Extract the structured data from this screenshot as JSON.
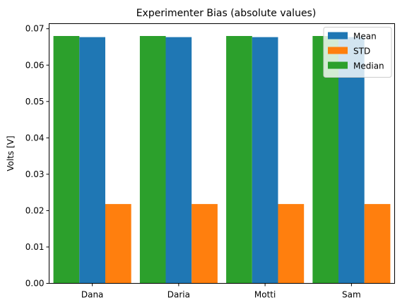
{
  "chart_data": {
    "type": "bar",
    "title": "Experimenter Bias (absolute values)",
    "xlabel": "",
    "ylabel": "Volts [V]",
    "categories": [
      "Dana",
      "Daria",
      "Motti",
      "Sam"
    ],
    "series": [
      {
        "name": "Median",
        "values": [
          0.068,
          0.068,
          0.068,
          0.068
        ],
        "color": "#2ca02c"
      },
      {
        "name": "Mean",
        "values": [
          0.0677,
          0.0677,
          0.0677,
          0.0677
        ],
        "color": "#1f77b4"
      },
      {
        "name": "STD",
        "values": [
          0.0218,
          0.0218,
          0.0218,
          0.0218
        ],
        "color": "#ff7f0e"
      }
    ],
    "legend": {
      "entries": [
        "Mean",
        "STD",
        "Median"
      ],
      "placement": "top-right"
    },
    "ylim": [
      0,
      0.0714
    ],
    "yticks": [
      "0.00",
      "0.01",
      "0.02",
      "0.03",
      "0.04",
      "0.05",
      "0.06",
      "0.07"
    ],
    "grid": false
  }
}
